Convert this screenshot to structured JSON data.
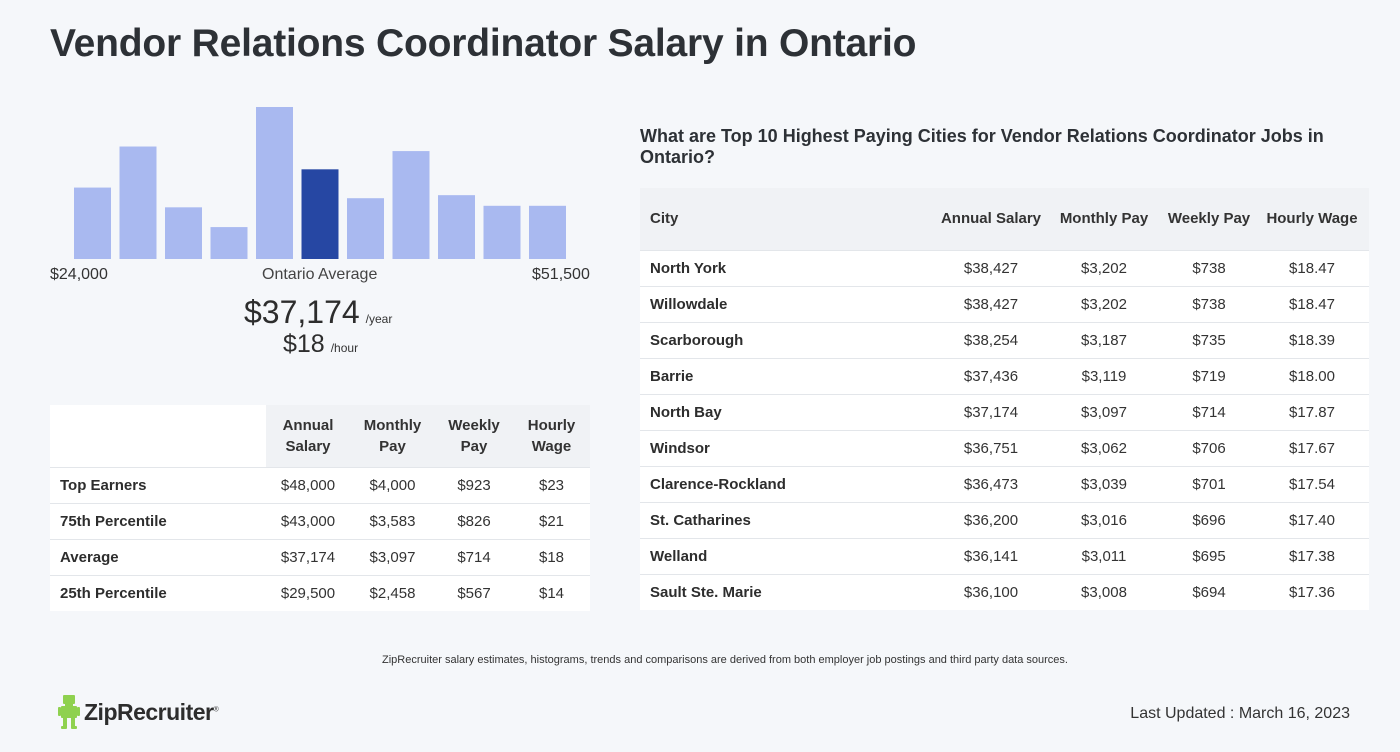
{
  "title": "Vendor Relations Coordinator Salary in Ontario",
  "histogram": {
    "min_label": "$24,000",
    "max_label": "$51,500",
    "center_label": "Ontario Average",
    "bar_color": "#a9b9f0",
    "highlight_color": "#2647a3",
    "highlight_index": 5,
    "bar_levels": [
      0.47,
      0.74,
      0.34,
      0.21,
      1.0,
      0.59,
      0.4,
      0.71,
      0.42,
      0.35,
      0.35
    ]
  },
  "average": {
    "annual": "$37,174",
    "annual_unit": "/year",
    "hourly": "$18",
    "hourly_unit": "/hour"
  },
  "percentile_table": {
    "headers": [
      "Annual Salary",
      "Monthly Pay",
      "Weekly Pay",
      "Hourly Wage"
    ],
    "rows": [
      {
        "label": "Top Earners",
        "annual": "$48,000",
        "monthly": "$4,000",
        "weekly": "$923",
        "hourly": "$23"
      },
      {
        "label": "75th Percentile",
        "annual": "$43,000",
        "monthly": "$3,583",
        "weekly": "$826",
        "hourly": "$21"
      },
      {
        "label": "Average",
        "annual": "$37,174",
        "monthly": "$3,097",
        "weekly": "$714",
        "hourly": "$18"
      },
      {
        "label": "25th Percentile",
        "annual": "$29,500",
        "monthly": "$2,458",
        "weekly": "$567",
        "hourly": "$14"
      }
    ]
  },
  "cities": {
    "question": "What are Top 10 Highest Paying Cities for Vendor Relations Coordinator Jobs in Ontario?",
    "headers": [
      "City",
      "Annual Salary",
      "Monthly Pay",
      "Weekly Pay",
      "Hourly Wage"
    ],
    "rows": [
      {
        "city": "North York",
        "annual": "$38,427",
        "monthly": "$3,202",
        "weekly": "$738",
        "hourly": "$18.47"
      },
      {
        "city": "Willowdale",
        "annual": "$38,427",
        "monthly": "$3,202",
        "weekly": "$738",
        "hourly": "$18.47"
      },
      {
        "city": "Scarborough",
        "annual": "$38,254",
        "monthly": "$3,187",
        "weekly": "$735",
        "hourly": "$18.39"
      },
      {
        "city": "Barrie",
        "annual": "$37,436",
        "monthly": "$3,119",
        "weekly": "$719",
        "hourly": "$18.00"
      },
      {
        "city": "North Bay",
        "annual": "$37,174",
        "monthly": "$3,097",
        "weekly": "$714",
        "hourly": "$17.87"
      },
      {
        "city": "Windsor",
        "annual": "$36,751",
        "monthly": "$3,062",
        "weekly": "$706",
        "hourly": "$17.67"
      },
      {
        "city": "Clarence-Rockland",
        "annual": "$36,473",
        "monthly": "$3,039",
        "weekly": "$701",
        "hourly": "$17.54"
      },
      {
        "city": "St. Catharines",
        "annual": "$36,200",
        "monthly": "$3,016",
        "weekly": "$696",
        "hourly": "$17.40"
      },
      {
        "city": "Welland",
        "annual": "$36,141",
        "monthly": "$3,011",
        "weekly": "$695",
        "hourly": "$17.38"
      },
      {
        "city": "Sault Ste. Marie",
        "annual": "$36,100",
        "monthly": "$3,008",
        "weekly": "$694",
        "hourly": "$17.36"
      }
    ]
  },
  "footer": {
    "disclaimer": "ZipRecruiter salary estimates, histograms, trends and comparisons are derived from both employer job postings and third party data sources.",
    "logo_text": "ZipRecruiter",
    "logo_color": "#8fd14f",
    "last_updated": "Last Updated : March 16, 2023"
  }
}
